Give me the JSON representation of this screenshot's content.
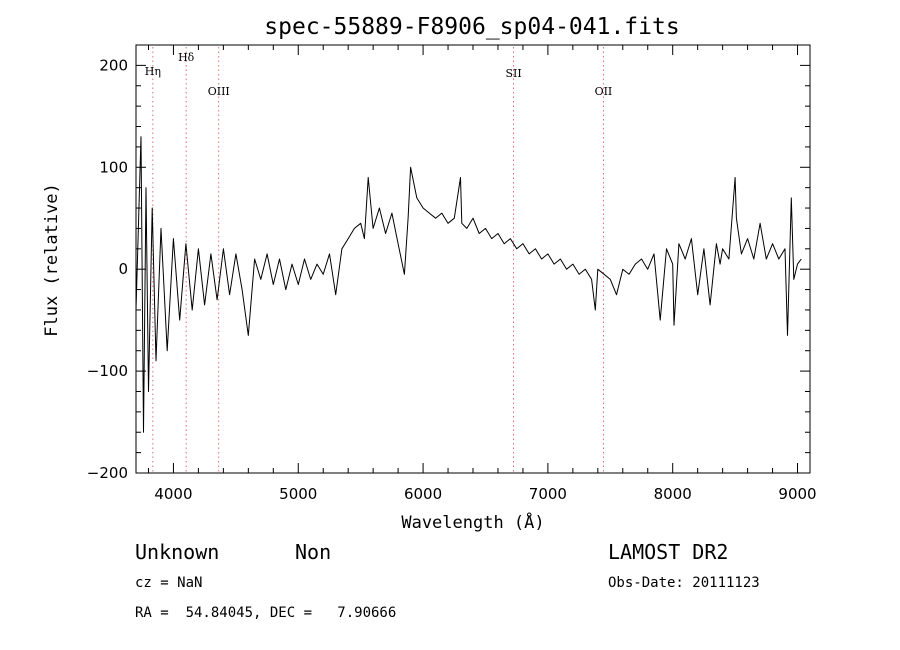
{
  "chart_data": {
    "type": "line",
    "title": "spec-55889-F8906_sp04-041.fits",
    "xlabel": "Wavelength (Å)",
    "ylabel": "Flux (relative)",
    "xlim": [
      3700,
      9100
    ],
    "ylim": [
      -200,
      220
    ],
    "x_ticks": [
      4000,
      5000,
      6000,
      7000,
      8000,
      9000
    ],
    "y_ticks": [
      -200,
      -100,
      0,
      100,
      200
    ],
    "grid": false,
    "series": [
      {
        "x": [
          3700,
          3740,
          3760,
          3780,
          3800,
          3830,
          3860,
          3900,
          3950,
          4000,
          4050,
          4100,
          4150,
          4200,
          4250,
          4300,
          4350,
          4400,
          4450,
          4500,
          4550,
          4600,
          4650,
          4700,
          4750,
          4800,
          4850,
          4900,
          4950,
          5000,
          5050,
          5100,
          5150,
          5200,
          5250,
          5300,
          5350,
          5400,
          5450,
          5500,
          5530,
          5560,
          5600,
          5650,
          5700,
          5750,
          5800,
          5850,
          5880,
          5900,
          5950,
          6000,
          6050,
          6100,
          6150,
          6200,
          6250,
          6300,
          6310,
          6350,
          6400,
          6450,
          6500,
          6550,
          6600,
          6650,
          6700,
          6750,
          6800,
          6850,
          6900,
          6950,
          7000,
          7050,
          7100,
          7150,
          7200,
          7250,
          7300,
          7350,
          7380,
          7400,
          7450,
          7500,
          7550,
          7600,
          7650,
          7700,
          7750,
          7800,
          7850,
          7900,
          7950,
          8000,
          8010,
          8050,
          8100,
          8150,
          8200,
          8250,
          8300,
          8350,
          8380,
          8400,
          8450,
          8500,
          8510,
          8550,
          8600,
          8650,
          8700,
          8750,
          8800,
          8850,
          8900,
          8920,
          8950,
          8970,
          9000,
          9030
        ],
        "y": [
          -40,
          130,
          -160,
          80,
          -120,
          60,
          -90,
          40,
          -80,
          30,
          -50,
          25,
          -40,
          20,
          -35,
          15,
          -30,
          20,
          -25,
          15,
          -20,
          -65,
          10,
          -10,
          15,
          -15,
          10,
          -20,
          5,
          -15,
          10,
          -10,
          5,
          -5,
          15,
          -25,
          20,
          30,
          40,
          45,
          30,
          90,
          40,
          60,
          35,
          55,
          25,
          -5,
          50,
          100,
          70,
          60,
          55,
          50,
          55,
          45,
          50,
          90,
          45,
          40,
          50,
          35,
          40,
          30,
          35,
          25,
          30,
          20,
          25,
          15,
          20,
          10,
          15,
          5,
          10,
          0,
          5,
          -5,
          0,
          -10,
          -40,
          0,
          -5,
          -10,
          -25,
          0,
          -5,
          5,
          10,
          0,
          15,
          -50,
          20,
          5,
          -55,
          25,
          10,
          30,
          -25,
          20,
          -35,
          25,
          5,
          20,
          10,
          90,
          50,
          15,
          30,
          10,
          45,
          10,
          25,
          10,
          20,
          -65,
          70,
          -10,
          5,
          10
        ]
      }
    ],
    "annotations": [
      {
        "label": "Hη",
        "x": 3835
      },
      {
        "label": "Hδ",
        "x": 4102
      },
      {
        "label": "OIII",
        "x": 4363
      },
      {
        "label": "SII",
        "x": 6725
      },
      {
        "label": "OII",
        "x": 7445
      }
    ]
  },
  "info": {
    "object_class": "Unknown",
    "subclass": "Non",
    "survey": "LAMOST DR2",
    "cz": "cz = NaN",
    "obs_date": "Obs-Date: 20111123",
    "coords": "RA =  54.84045, DEC =   7.90666"
  },
  "colors": {
    "line": "#000000",
    "marker_line": "#e06060"
  }
}
